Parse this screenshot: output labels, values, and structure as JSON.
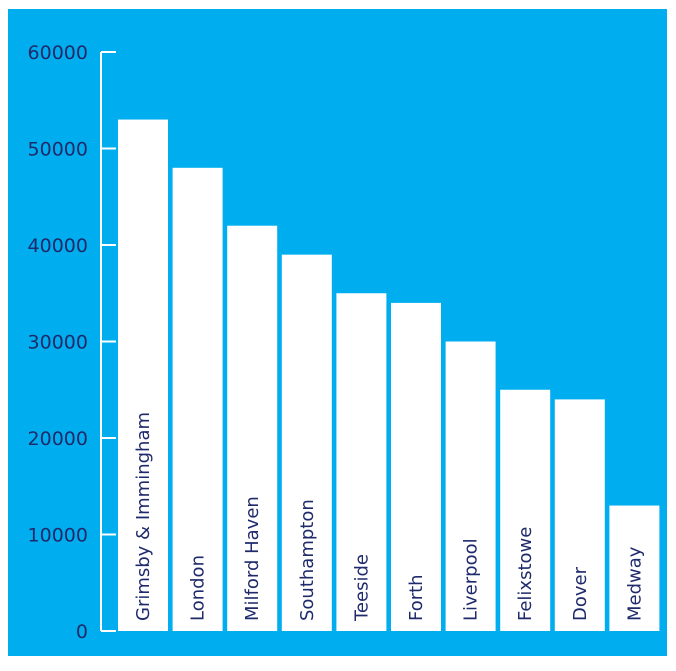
{
  "colors": {
    "background": "#00aeef",
    "bar": "#ffffff",
    "text": "#1f2a6b",
    "axis": "#ffffff"
  },
  "chart_data": {
    "type": "bar",
    "orientation": "vertical",
    "categories": [
      "Grimsby & Immingham",
      "London",
      "Milford Haven",
      "Southampton",
      "Teeside",
      "Forth",
      "Liverpool",
      "Felixstowe",
      "Dover",
      "Medway"
    ],
    "values": [
      53000,
      48000,
      42000,
      39000,
      35000,
      34000,
      30000,
      25000,
      24000,
      13000
    ],
    "ylim": [
      0,
      60000
    ],
    "yticks": [
      0,
      10000,
      20000,
      30000,
      40000,
      50000,
      60000
    ],
    "ytick_labels": [
      "0",
      "10000",
      "20000",
      "30000",
      "40000",
      "50000",
      "60000"
    ],
    "category_label_placement": "inside-bar-rotated",
    "title": "",
    "xlabel": "",
    "ylabel": "",
    "grid": false,
    "legend": "none"
  }
}
